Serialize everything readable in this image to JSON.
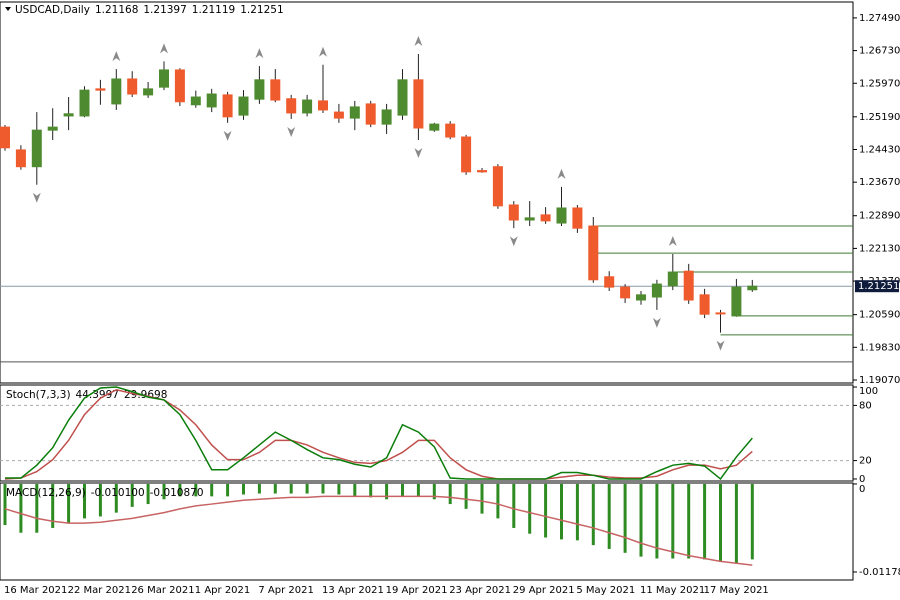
{
  "chart_data": [
    {
      "type": "candlestick",
      "title": "USDCAD,Daily",
      "categories": [
        "16 Mar 2021",
        null,
        null,
        null,
        "22 Mar 2021",
        null,
        null,
        null,
        "26 Mar 2021",
        null,
        null,
        null,
        "1 Apr 2021",
        null,
        null,
        null,
        "7 Apr 2021",
        null,
        null,
        null,
        "13 Apr 2021",
        null,
        null,
        null,
        "19 Apr 2021",
        null,
        null,
        null,
        "23 Apr 2021",
        null,
        null,
        null,
        "29 Apr 2021",
        null,
        null,
        null,
        "5 May 2021",
        null,
        null,
        null,
        "11 May 2021",
        null,
        null,
        null,
        "17 May 2021",
        null,
        null,
        null
      ],
      "open": [
        1.2495,
        1.2442,
        1.2403,
        1.2488,
        1.2521,
        1.2521,
        1.2584,
        1.2549,
        1.2607,
        1.257,
        1.2588,
        1.2628,
        1.2547,
        1.2542,
        1.257,
        1.2523,
        1.256,
        1.2605,
        1.2561,
        1.2528,
        1.2556,
        1.253,
        1.2516,
        1.2549,
        1.2502,
        1.2523,
        1.2605,
        1.2488,
        1.2502,
        1.2472,
        1.2394,
        1.2403,
        1.2314,
        1.2279,
        1.2291,
        1.2272,
        1.2307,
        1.2265,
        1.2147,
        1.2123,
        1.2093,
        1.21,
        1.2126,
        1.216,
        1.2105,
        1.2063,
        1.2056,
        1.21168
      ],
      "high": [
        1.25,
        1.2453,
        1.253,
        1.2539,
        1.2565,
        1.259,
        1.2605,
        1.263,
        1.2625,
        1.26,
        1.2648,
        1.2632,
        1.258,
        1.2584,
        1.2577,
        1.2581,
        1.2637,
        1.263,
        1.257,
        1.257,
        1.264,
        1.2549,
        1.2556,
        1.2556,
        1.2549,
        1.263,
        1.2665,
        1.2505,
        1.2509,
        1.2477,
        1.24,
        1.2409,
        1.2323,
        1.2323,
        1.2309,
        1.2356,
        1.2314,
        1.2286,
        1.216,
        1.213,
        1.2114,
        1.214,
        1.22,
        1.2177,
        1.2119,
        1.207,
        1.2142,
        1.21397
      ],
      "low": [
        1.244,
        1.2396,
        1.2361,
        1.2465,
        1.2488,
        1.2518,
        1.2547,
        1.2535,
        1.2565,
        1.2563,
        1.2581,
        1.2544,
        1.254,
        1.253,
        1.2505,
        1.2512,
        1.2549,
        1.2553,
        1.2514,
        1.252,
        1.2528,
        1.2505,
        1.2488,
        1.2495,
        1.2479,
        1.2512,
        1.2465,
        1.2484,
        1.2467,
        1.2384,
        1.2389,
        1.2305,
        1.226,
        1.2265,
        1.227,
        1.2265,
        1.2249,
        1.2133,
        1.2114,
        1.2086,
        1.2082,
        1.207,
        1.2116,
        1.2084,
        1.2051,
        1.2017,
        1.2054,
        1.21119
      ],
      "close": [
        1.2447,
        1.2403,
        1.2488,
        1.2495,
        1.2526,
        1.2581,
        1.2581,
        1.2607,
        1.2572,
        1.2584,
        1.2628,
        1.2554,
        1.2565,
        1.2572,
        1.2519,
        1.2565,
        1.2605,
        1.2558,
        1.2528,
        1.2558,
        1.2535,
        1.2516,
        1.2542,
        1.2502,
        1.2535,
        1.2605,
        1.2493,
        1.2502,
        1.2472,
        1.2391,
        1.2391,
        1.2312,
        1.2279,
        1.2284,
        1.2277,
        1.2307,
        1.226,
        1.214,
        1.2123,
        1.2098,
        1.2105,
        1.213,
        1.2158,
        1.2093,
        1.206,
        1.2061,
        1.2123,
        1.21251
      ],
      "up_color": "#4e8a2f",
      "down_color": "#ef5b2c",
      "ylim": [
        1.19,
        1.2786
      ],
      "yticks": [
        {
          "value": 1.2749,
          "label": "1.27490"
        },
        {
          "value": 1.2673,
          "label": "1.26730"
        },
        {
          "value": 1.2597,
          "label": "1.25970"
        },
        {
          "value": 1.2519,
          "label": "1.25190"
        },
        {
          "value": 1.2443,
          "label": "1.24430"
        },
        {
          "value": 1.2367,
          "label": "1.23670"
        },
        {
          "value": 1.2289,
          "label": "1.22890"
        },
        {
          "value": 1.2213,
          "label": "1.22130"
        },
        {
          "value": 1.2137,
          "label": "1.21370"
        },
        {
          "value": 1.2059,
          "label": "1.20590"
        },
        {
          "value": 1.1983,
          "label": "1.19830"
        },
        {
          "value": 1.1907,
          "label": "1.19070"
        }
      ],
      "levels": [
        {
          "value": 1.2265,
          "from": 37,
          "color": "#3f7a34"
        },
        {
          "value": 1.2202,
          "from": 37,
          "color": "#3f7a34"
        },
        {
          "value": 1.2158,
          "from": 42,
          "color": "#3f7a34"
        },
        {
          "value": 1.2056,
          "from": 46,
          "color": "#3f7a34"
        },
        {
          "value": 1.2012,
          "from": 45,
          "color": "#3f7a34"
        },
        {
          "value": 1.1949,
          "from": 0,
          "color": "#555555"
        }
      ],
      "price_line_color": "#8a9aaa",
      "price_label_color": "#0f1c3c"
    },
    {
      "type": "line",
      "title": "Stoch(7,3,3)",
      "series": [
        {
          "color": "#0a7d0a",
          "values": [
            1,
            1,
            15,
            34,
            64,
            88,
            99,
            100,
            95,
            89,
            86,
            70,
            42,
            10,
            10,
            23,
            37,
            51,
            42,
            32,
            23,
            21,
            16,
            13,
            23,
            59,
            51,
            35,
            1,
            0,
            0,
            0,
            0,
            0,
            0,
            7,
            7,
            4,
            0,
            0,
            0,
            8,
            15,
            17,
            14,
            0,
            24,
            44.3997
          ]
        },
        {
          "color": "#c0504d",
          "values": [
            0,
            1,
            8,
            21,
            42,
            70,
            88,
            97,
            93,
            90,
            86,
            75,
            59,
            37,
            21,
            21,
            29,
            42,
            42,
            37,
            29,
            23,
            18,
            17,
            20,
            29,
            42,
            42,
            23,
            10,
            3,
            0,
            0,
            0,
            0,
            2,
            4,
            4,
            2,
            1,
            1,
            3,
            10,
            15,
            15,
            11,
            15,
            29.9698
          ]
        }
      ],
      "ylim": [
        -2.2,
        102.2
      ],
      "yticks": [
        0,
        20,
        80,
        100
      ],
      "levels": [
        20,
        80
      ]
    },
    {
      "type": "macd",
      "title": "MACD(12,26,9)",
      "series": [
        {
          "type": "bar",
          "color": "#2e8b22",
          "values": [
            -0.0055,
            -0.00653,
            -0.00653,
            -0.00589,
            -0.00525,
            -0.00461,
            -0.00435,
            -0.00384,
            -0.00307,
            -0.00269,
            -0.00205,
            -0.00166,
            -0.00166,
            -0.00166,
            -0.00166,
            -0.00141,
            -0.00128,
            -0.00128,
            -0.00128,
            -0.00128,
            -0.00128,
            -0.00141,
            -0.00166,
            -0.00179,
            -0.00205,
            -0.00166,
            -0.00166,
            -0.00205,
            -0.00269,
            -0.00333,
            -0.00397,
            -0.00461,
            -0.00589,
            -0.00666,
            -0.00717,
            -0.00742,
            -0.00755,
            -0.00819,
            -0.0087,
            -0.00922,
            -0.00973,
            -0.00998,
            -0.00998,
            -0.00998,
            -0.01011,
            -0.01037,
            -0.01062,
            -0.0101
          ],
          "value_labels": [
            null,
            null,
            null,
            null,
            null,
            null,
            null,
            null,
            null,
            null,
            null,
            null,
            null,
            null,
            null,
            null,
            null,
            null,
            null,
            null,
            null,
            null,
            null,
            null,
            null,
            null,
            null,
            null,
            null,
            null,
            null,
            null,
            null,
            null,
            null,
            null,
            null,
            null,
            null,
            null,
            null,
            null,
            null,
            null,
            null,
            null,
            null,
            "-0.010100"
          ]
        },
        {
          "type": "line",
          "color": "#c86464",
          "values": [
            -0.00333,
            -0.00397,
            -0.00461,
            -0.00499,
            -0.00525,
            -0.00525,
            -0.00512,
            -0.00486,
            -0.00461,
            -0.00422,
            -0.00384,
            -0.00333,
            -0.00294,
            -0.00269,
            -0.00243,
            -0.00218,
            -0.00205,
            -0.00192,
            -0.00179,
            -0.00179,
            -0.00166,
            -0.00166,
            -0.00166,
            -0.00166,
            -0.00166,
            -0.00166,
            -0.00166,
            -0.00166,
            -0.00179,
            -0.00205,
            -0.0023,
            -0.00269,
            -0.00333,
            -0.00384,
            -0.00435,
            -0.00486,
            -0.00538,
            -0.00589,
            -0.00653,
            -0.00717,
            -0.00794,
            -0.00858,
            -0.00909,
            -0.0096,
            -0.00998,
            -0.01037,
            -0.01062,
            -0.01087
          ],
          "value_labels": [
            null,
            null,
            null,
            null,
            null,
            null,
            null,
            null,
            null,
            null,
            null,
            null,
            null,
            null,
            null,
            null,
            null,
            null,
            null,
            null,
            null,
            null,
            null,
            null,
            null,
            null,
            null,
            null,
            null,
            null,
            null,
            null,
            null,
            null,
            null,
            null,
            null,
            null,
            null,
            null,
            null,
            null,
            null,
            null,
            null,
            null,
            null,
            "-0.010870"
          ]
        }
      ],
      "ylim": [
        -0.01286,
        0.00013
      ],
      "yticks": [
        0,
        -0.011786
      ]
    }
  ]
}
